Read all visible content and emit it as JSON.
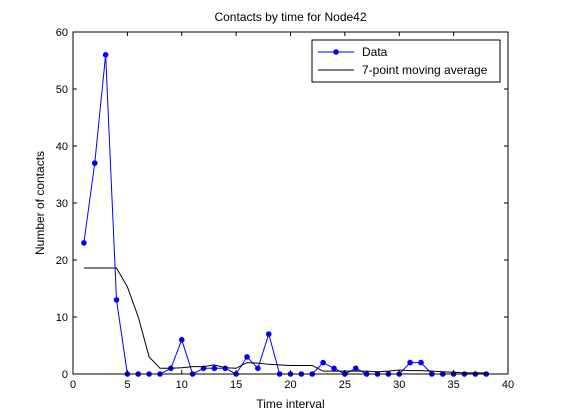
{
  "chart_data": {
    "type": "line",
    "title": "Contacts by time for Node42",
    "xlabel": "Time interval",
    "ylabel": "Number of contacts",
    "xlim": [
      0,
      40
    ],
    "ylim": [
      0,
      60
    ],
    "xticks": [
      0,
      5,
      10,
      15,
      20,
      25,
      30,
      35,
      40
    ],
    "yticks": [
      0,
      10,
      20,
      30,
      40,
      50,
      60
    ],
    "grid": false,
    "legend_position": "top-right",
    "series": [
      {
        "name": "Data",
        "style": "line-with-markers",
        "color": "#0000ff",
        "x": [
          1,
          2,
          3,
          4,
          5,
          6,
          7,
          8,
          9,
          10,
          11,
          12,
          13,
          14,
          15,
          16,
          17,
          18,
          19,
          20,
          21,
          22,
          23,
          24,
          25,
          26,
          27,
          28,
          29,
          30,
          31,
          32,
          33,
          34,
          35,
          36,
          37,
          38
        ],
        "y": [
          23,
          37,
          56,
          13,
          0,
          0,
          0,
          0,
          1,
          6,
          0,
          1,
          1,
          1,
          0,
          3,
          1,
          7,
          0,
          0,
          0,
          0,
          2,
          1,
          0,
          1,
          0,
          0,
          0,
          0,
          2,
          2,
          0,
          0,
          0,
          0,
          0,
          0
        ]
      },
      {
        "name": "7-point moving average",
        "style": "line",
        "color": "#000000",
        "x": [
          1,
          2,
          3,
          4,
          5,
          6,
          7,
          8,
          9,
          10,
          11,
          12,
          13,
          14,
          15,
          16,
          17,
          18,
          19,
          20,
          21,
          22,
          23,
          24,
          25,
          26,
          27,
          28,
          29,
          30,
          31,
          32,
          33,
          34,
          35,
          36,
          37,
          38
        ],
        "y": [
          18.6,
          18.6,
          18.6,
          18.6,
          15.3,
          10.0,
          3.0,
          1.0,
          1.0,
          1.1,
          1.3,
          1.3,
          1.6,
          1.1,
          1.0,
          2.0,
          1.9,
          1.7,
          1.6,
          1.5,
          1.5,
          1.5,
          0.5,
          0.5,
          0.5,
          0.5,
          0.5,
          0.4,
          0.5,
          0.7,
          0.6,
          0.6,
          0.5,
          0.4,
          0.3,
          0.2,
          0.2,
          0.2
        ]
      }
    ]
  }
}
